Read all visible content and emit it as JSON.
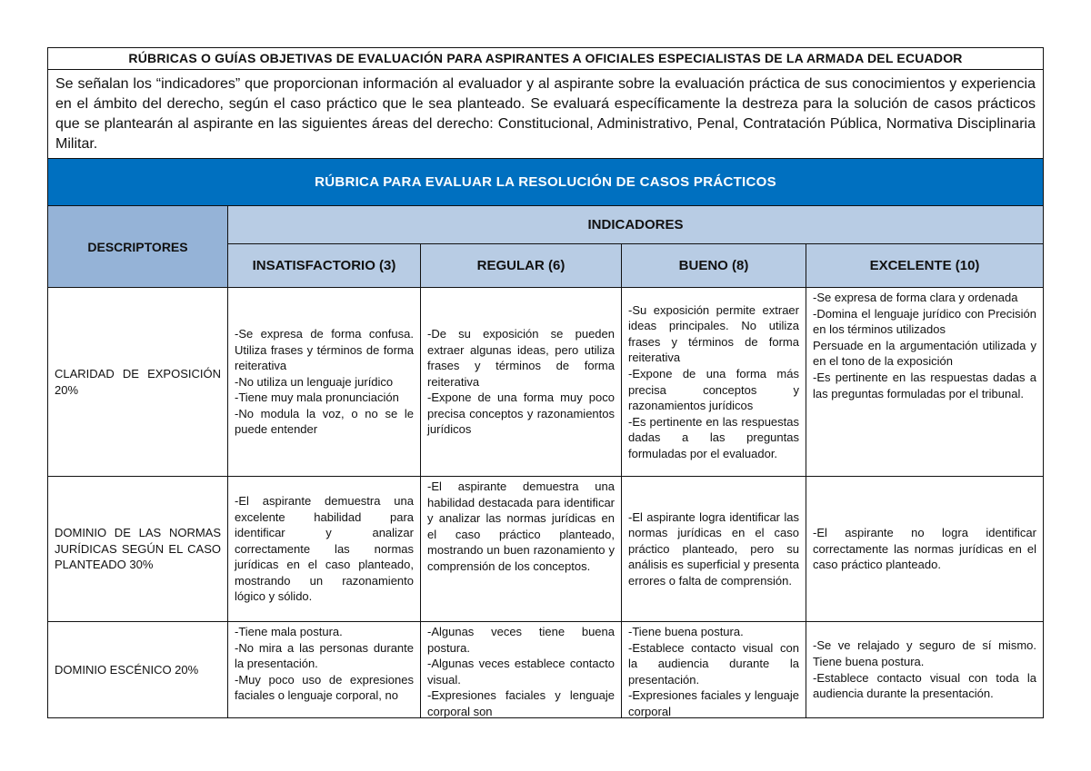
{
  "document": {
    "title": "RÚBRICAS O GUÍAS OBJETIVAS DE EVALUACIÓN PARA ASPIRANTES A OFICIALES ESPECIALISTAS DE LA ARMADA DEL ECUADOR",
    "intro": "Se señalan los “indicadores” que proporcionan información al evaluador y al aspirante sobre la evaluación práctica de sus conocimientos y experiencia en el ámbito del derecho, según el caso práctico que le sea planteado. Se evaluará específicamente la destreza para la solución de casos prácticos que se plantearán al aspirante en las siguientes áreas del derecho: Constitucional, Administrativo, Penal, Contratación Pública, Normativa Disciplinaria Militar.",
    "rubric_title": "RÚBRICA PARA EVALUAR LA RESOLUCIÓN DE CASOS PRÁCTICOS",
    "descriptors_header": "DESCRIPTORES",
    "indicators_header": "INDICADORES",
    "levels": [
      "INSATISFACTORIO (3)",
      "REGULAR (6)",
      "BUENO (8)",
      "EXCELENTE (10)"
    ],
    "header_colors": {
      "rubric": "#0070c0",
      "descriptors": "#95b3d7",
      "indicators": "#b8cce4"
    },
    "rows": [
      {
        "descriptor": "CLARIDAD DE EXPOSICIÓN 20%",
        "cells": [
          "-Se expresa de forma confusa. Utiliza frases y términos de forma reiterativa\n-No utiliza un lenguaje jurídico\n-Tiene muy mala pronunciación\n-No modula la voz, o no se le puede entender",
          "-De su exposición se pueden extraer algunas ideas, pero utiliza frases y términos de forma reiterativa\n-Expone de una forma muy poco precisa conceptos y razonamientos jurídicos",
          "-Su exposición permite extraer ideas principales. No utiliza frases y términos de forma reiterativa\n-Expone de una forma más precisa conceptos y razonamientos jurídicos\n-Es pertinente en las respuestas dadas a las preguntas formuladas por el evaluador.",
          "-Se expresa de forma clara y ordenada\n-Domina el lenguaje jurídico con Precisión en los términos utilizados\nPersuade en la argumentación utilizada y en el tono de la exposición\n-Es pertinente en las respuestas dadas a las preguntas formuladas por el tribunal."
        ]
      },
      {
        "descriptor": "DOMINIO DE LAS NORMAS JURÍDICAS SEGÚN EL CASO PLANTEADO 30%",
        "cells": [
          "-El aspirante demuestra una excelente habilidad para identificar y analizar correctamente las normas jurídicas en el caso planteado, mostrando un razonamiento lógico y sólido.",
          "-El aspirante demuestra una habilidad destacada para identificar y analizar las normas jurídicas en el caso práctico planteado, mostrando un buen razonamiento y comprensión de los conceptos.",
          "-El aspirante logra identificar las normas jurídicas en el caso práctico planteado, pero su análisis es superficial y presenta errores o falta de comprensión.",
          "-El aspirante no logra identificar correctamente las normas jurídicas en el caso práctico planteado."
        ]
      },
      {
        "descriptor": "DOMINIO ESCÉNICO 20%",
        "cells": [
          "-Tiene mala postura.\n-No mira a las personas durante la presentación.\n-Muy poco uso de expresiones faciales o lenguaje corporal, no",
          "-Algunas veces tiene buena postura.\n-Algunas veces establece contacto visual.\n-Expresiones faciales y lenguaje corporal son",
          "-Tiene buena postura.\n-Establece contacto visual con la audiencia durante la presentación.\n-Expresiones faciales y lenguaje corporal",
          "-Se ve relajado y seguro de sí mismo. Tiene buena postura.\n-Establece contacto visual con toda la audiencia durante la presentación."
        ]
      }
    ]
  }
}
